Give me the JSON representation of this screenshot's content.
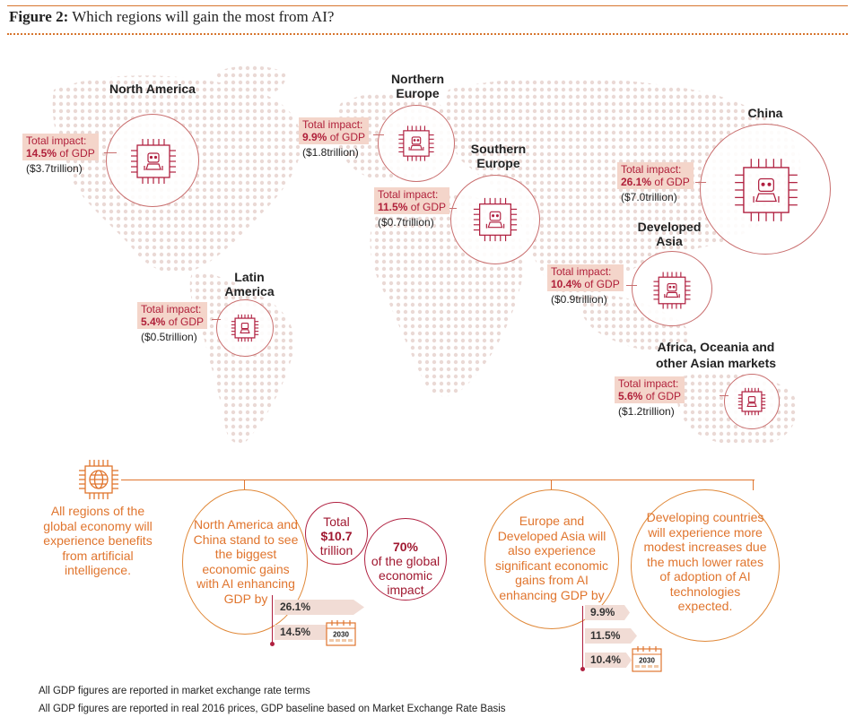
{
  "figure": {
    "label": "Figure 2:",
    "title": "Which regions will gain the most from AI?"
  },
  "regions": {
    "north_america": {
      "name": "North America",
      "impact_label": "Total impact:",
      "pct": "14.5%",
      "gdp": " of GDP",
      "trillion": "($3.7trillion)"
    },
    "northern_europe": {
      "name": "Northern Europe",
      "impact_label": "Total impact:",
      "pct": "9.9%",
      "gdp": " of GDP",
      "trillion": "($1.8trillion)"
    },
    "southern_europe": {
      "name": "Southern Europe",
      "impact_label": "Total impact:",
      "pct": "11.5%",
      "gdp": " of GDP",
      "trillion": "($0.7trillion)"
    },
    "china": {
      "name": "China",
      "impact_label": "Total impact:",
      "pct": "26.1%",
      "gdp": " of GDP",
      "trillion": "($7.0trillion)"
    },
    "developed_asia": {
      "name": "Developed Asia",
      "impact_label": "Total impact:",
      "pct": "10.4%",
      "gdp": " of GDP",
      "trillion": "($0.9trillion)"
    },
    "latin_america": {
      "name": "Latin America",
      "impact_label": "Total impact:",
      "pct": "5.4%",
      "gdp": " of GDP",
      "trillion": "($0.5trillion)"
    },
    "africa_oceania": {
      "name": "Africa, Oceania and other Asian markets",
      "impact_label": "Total impact:",
      "pct": "5.6%",
      "gdp": " of GDP",
      "trillion": "($1.2trillion)"
    }
  },
  "summary": {
    "all_regions": "All regions of the global economy will experience benefits from artificial intelligence.",
    "na_china": "North America and China stand to see the biggest economic gains with AI enhancing GDP by",
    "total_label": "Total",
    "total_value": "$10.7",
    "total_unit": "trillion",
    "share_pct": "70%",
    "share_text": "of the global economic impact",
    "europe_asia": "Europe and Developed Asia will also experience significant economic gains from AI enhancing GDP by",
    "developing": "Developing countries will experience more modest increases due the much lower rates of adoption of AI technologies expected.",
    "tags_left": [
      "26.1%",
      "14.5%"
    ],
    "tags_right": [
      "9.9%",
      "11.5%",
      "10.4%"
    ],
    "year": "2030"
  },
  "footnotes": [
    "All GDP figures are reported in market exchange rate terms",
    "All GDP figures are reported in real 2016 prices, GDP baseline based on Market Exchange Rate Basis"
  ],
  "colors": {
    "accent_orange": "#e0752e",
    "accent_red": "#b02040",
    "highlight": "#f4d5ca",
    "map_dots": "#e8d8d4"
  },
  "icons": [
    "ai-chip-icon",
    "globe-chip-icon",
    "calendar-icon"
  ]
}
